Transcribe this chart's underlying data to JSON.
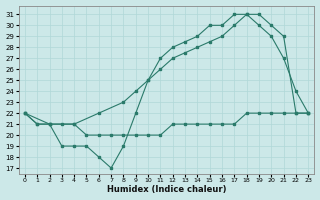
{
  "xlabel": "Humidex (Indice chaleur)",
  "xlim": [
    -0.5,
    23.5
  ],
  "ylim": [
    16.5,
    31.8
  ],
  "yticks": [
    17,
    18,
    19,
    20,
    21,
    22,
    23,
    24,
    25,
    26,
    27,
    28,
    29,
    30,
    31
  ],
  "xticks": [
    0,
    1,
    2,
    3,
    4,
    5,
    6,
    7,
    8,
    9,
    10,
    11,
    12,
    13,
    14,
    15,
    16,
    17,
    18,
    19,
    20,
    21,
    22,
    23
  ],
  "bg_color": "#cce8e8",
  "grid_color": "#b0d8d8",
  "line_color": "#2a7a6a",
  "line1_x": [
    0,
    1,
    2,
    3,
    4,
    5,
    6,
    7,
    8,
    9,
    10,
    11,
    12,
    13,
    14,
    15,
    16,
    17,
    18,
    19,
    20,
    21,
    22,
    23
  ],
  "line1_y": [
    22,
    21,
    21,
    19,
    19,
    19,
    18,
    17,
    19,
    22,
    25,
    27,
    28,
    28.5,
    29,
    30,
    30,
    31,
    31,
    30,
    29,
    27,
    24,
    22
  ],
  "line2_x": [
    0,
    2,
    4,
    6,
    8,
    9,
    10,
    11,
    12,
    13,
    14,
    15,
    16,
    17,
    18,
    19,
    20,
    21,
    22,
    23
  ],
  "line2_y": [
    22,
    21,
    21,
    22,
    23,
    24,
    25,
    26,
    27,
    27.5,
    28,
    28.5,
    29,
    30,
    31,
    31,
    30,
    29,
    22,
    22
  ],
  "line3_x": [
    0,
    1,
    2,
    3,
    4,
    5,
    6,
    7,
    8,
    9,
    10,
    11,
    12,
    13,
    14,
    15,
    16,
    17,
    18,
    19,
    20,
    21,
    22,
    23
  ],
  "line3_y": [
    22,
    21,
    21,
    21,
    21,
    20,
    20,
    20,
    20,
    20,
    20,
    20,
    21,
    21,
    21,
    21,
    21,
    21,
    22,
    22,
    22,
    22,
    22,
    22
  ]
}
